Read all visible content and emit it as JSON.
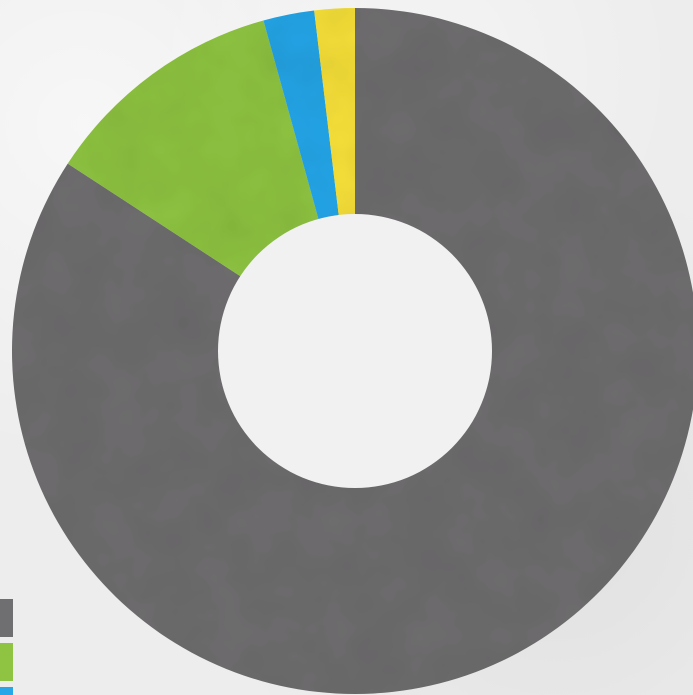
{
  "chart_data": {
    "type": "pie",
    "style": "donut",
    "legend_placement": "bottom-left",
    "series": [
      {
        "color": "#6f6e70",
        "value": 84.2
      },
      {
        "color": "#8fc442",
        "value": 11.5
      },
      {
        "color": "#27a6e8",
        "value": 2.4
      },
      {
        "color": "#f7e13a",
        "value": 1.9
      }
    ],
    "background": "#ededed",
    "hole_color": "#f1f1f1"
  }
}
